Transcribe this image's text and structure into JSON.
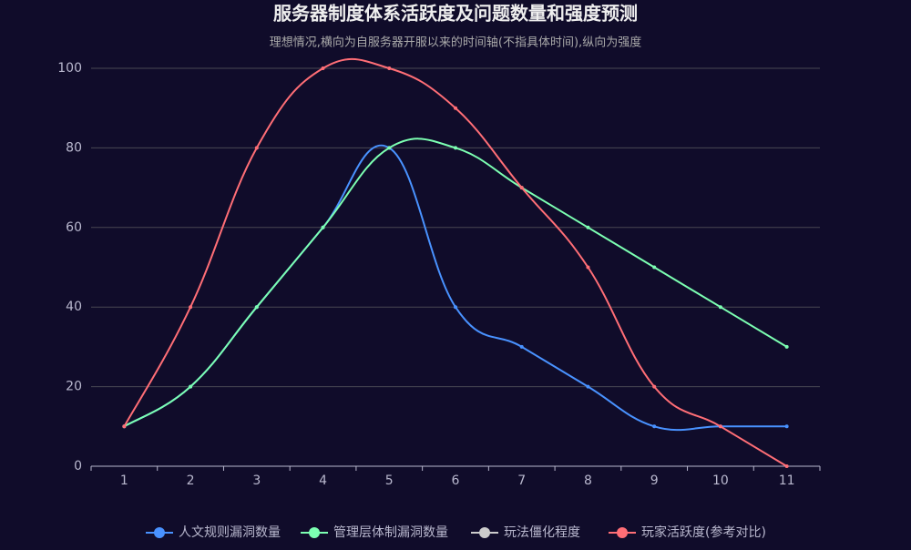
{
  "chart_data": {
    "type": "line",
    "title": "服务器制度体系活跃度及问题数量和强度预测",
    "subtitle": "理想情况,横向为自服务器开服以来的时间轴(不指具体时间),纵向为强度",
    "categories": [
      "1",
      "2",
      "3",
      "4",
      "5",
      "6",
      "7",
      "8",
      "9",
      "10",
      "11"
    ],
    "series": [
      {
        "name": "人文规则漏洞数量",
        "color": "#4992ff",
        "values": [
          10,
          20,
          40,
          60,
          80,
          40,
          30,
          20,
          10,
          10,
          10
        ]
      },
      {
        "name": "管理层体制漏洞数量",
        "color": "#7cffb2",
        "values": [
          10,
          20,
          40,
          60,
          80,
          80,
          70,
          60,
          50,
          40,
          30
        ]
      },
      {
        "name": "玩法僵化程度",
        "color": "#cccccc",
        "values": [
          null,
          null,
          null,
          null,
          null,
          null,
          null,
          null,
          null,
          null,
          null
        ]
      },
      {
        "name": "玩家活跃度(参考对比)",
        "color": "#ff6e76",
        "values": [
          10,
          40,
          80,
          100,
          100,
          90,
          70,
          50,
          20,
          10,
          0
        ]
      }
    ],
    "ylim": [
      0,
      100
    ],
    "yticks": [
      0,
      20,
      40,
      60,
      80,
      100
    ],
    "grid": true,
    "smooth": true,
    "legend": "bottom"
  }
}
